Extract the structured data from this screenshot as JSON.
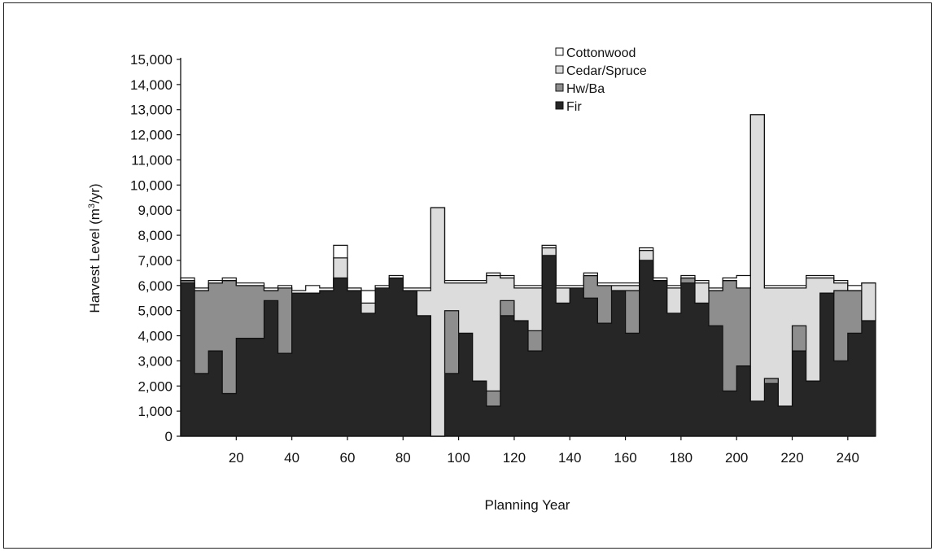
{
  "chart_data": {
    "type": "area",
    "subtype": "stacked",
    "xlabel": "Planning Year",
    "ylabel_main": "Harvest Level (m",
    "ylabel_sup": "3",
    "ylabel_tail": "/yr)",
    "xlim": [
      0,
      250
    ],
    "ylim": [
      0,
      15000
    ],
    "x_ticks": [
      20,
      40,
      60,
      80,
      100,
      120,
      140,
      160,
      180,
      200,
      220,
      240
    ],
    "y_ticks": [
      0,
      1000,
      2000,
      3000,
      4000,
      5000,
      6000,
      7000,
      8000,
      9000,
      10000,
      11000,
      12000,
      13000,
      14000,
      15000
    ],
    "x_tick_labels": [
      "20",
      "40",
      "60",
      "80",
      "100",
      "120",
      "140",
      "160",
      "180",
      "200",
      "220",
      "240"
    ],
    "y_tick_labels": [
      "0",
      "1,000",
      "2,000",
      "3,000",
      "4,000",
      "5,000",
      "6,000",
      "7,000",
      "8,000",
      "9,000",
      "10,000",
      "11,000",
      "12,000",
      "13,000",
      "14,000",
      "15,000"
    ],
    "legend_position": "top-right",
    "grid": false,
    "x": [
      1,
      5,
      10,
      15,
      20,
      25,
      30,
      35,
      40,
      45,
      50,
      55,
      60,
      65,
      70,
      75,
      80,
      85,
      90,
      95,
      100,
      105,
      110,
      115,
      120,
      125,
      130,
      135,
      140,
      145,
      150,
      155,
      160,
      165,
      170,
      175,
      180,
      185,
      190,
      195,
      200,
      205,
      210,
      215,
      220,
      225,
      230,
      235,
      240,
      245,
      250
    ],
    "series": [
      {
        "name": "Fir",
        "color": "#262626",
        "values": [
          6100,
          2500,
          3400,
          1700,
          3900,
          3900,
          5400,
          3300,
          5700,
          5700,
          5800,
          6300,
          5800,
          4900,
          5900,
          6300,
          5800,
          4800,
          0,
          2500,
          4100,
          2200,
          1200,
          4800,
          4600,
          3400,
          7200,
          5300,
          5900,
          5500,
          4500,
          5800,
          4100,
          7000,
          6200,
          4900,
          6100,
          5300,
          4400,
          1800,
          2800,
          1400,
          2100,
          1200,
          3400,
          2200,
          5700,
          3000,
          4100,
          4600,
          4600
        ]
      },
      {
        "name": "Hw/Ba",
        "color": "#8e8e8e",
        "values": [
          100,
          3300,
          2700,
          4500,
          2100,
          2100,
          400,
          2600,
          0,
          0,
          0,
          0,
          0,
          0,
          0,
          0,
          0,
          0,
          0,
          2500,
          0,
          0,
          600,
          600,
          0,
          800,
          0,
          0,
          0,
          900,
          1500,
          0,
          1700,
          0,
          0,
          0,
          200,
          0,
          1400,
          4400,
          3100,
          0,
          200,
          0,
          1000,
          0,
          0,
          2800,
          1700,
          0,
          0
        ]
      },
      {
        "name": "Cedar/Spruce",
        "color": "#dcdcdc",
        "values": [
          0,
          0,
          0,
          0,
          0,
          0,
          0,
          0,
          0,
          0,
          0,
          800,
          0,
          400,
          0,
          0,
          0,
          1000,
          9100,
          1100,
          2000,
          3900,
          4600,
          900,
          1300,
          1700,
          300,
          600,
          0,
          0,
          0,
          200,
          200,
          400,
          0,
          1000,
          0,
          800,
          0,
          0,
          0,
          11400,
          3600,
          4700,
          1500,
          4100,
          600,
          300,
          0,
          1500,
          1500
        ]
      },
      {
        "name": "Cottonwood",
        "color": "#ffffff",
        "values": [
          100,
          100,
          100,
          100,
          100,
          100,
          100,
          100,
          100,
          300,
          100,
          500,
          100,
          500,
          100,
          100,
          100,
          100,
          0,
          100,
          100,
          100,
          100,
          100,
          100,
          100,
          100,
          100,
          100,
          100,
          100,
          100,
          100,
          100,
          100,
          100,
          100,
          100,
          100,
          100,
          500,
          0,
          100,
          100,
          100,
          100,
          100,
          100,
          200,
          0,
          0
        ]
      }
    ]
  },
  "legend_order": [
    "Cottonwood",
    "Cedar/Spruce",
    "Hw/Ba",
    "Fir"
  ]
}
